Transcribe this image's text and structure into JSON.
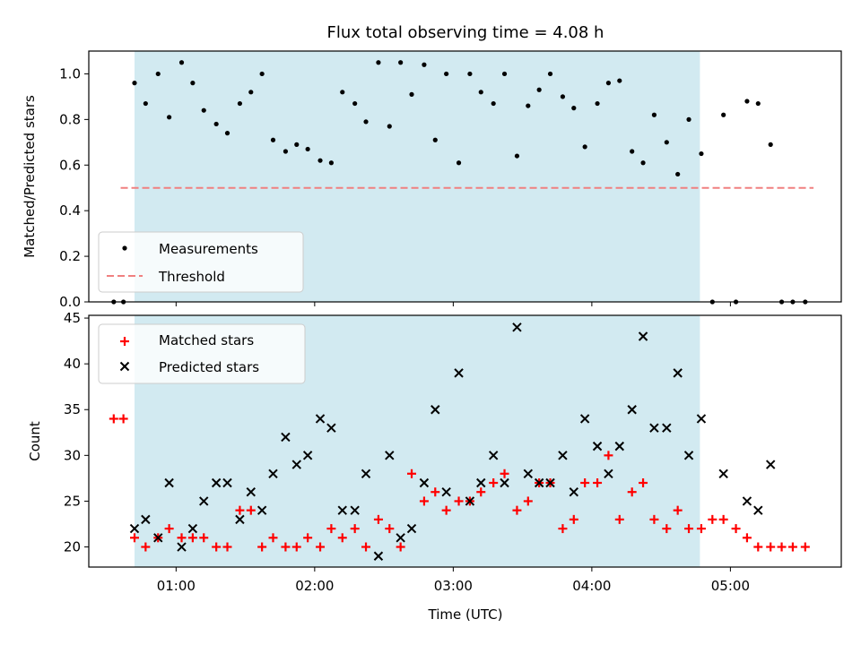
{
  "chart_data": {
    "title": "Flux total observing time = 4.08 h",
    "xlabel": "Time (UTC)",
    "x_tick_labels": [
      "01:00",
      "02:00",
      "03:00",
      "04:00",
      "05:00"
    ],
    "x_tick_hours": [
      1,
      2,
      3,
      4,
      5
    ],
    "xlim_hours": [
      0.37,
      5.8
    ],
    "shaded_region_hours": [
      0.7,
      4.78
    ],
    "shade_color": "#add8e6",
    "top_panel": {
      "type": "scatter",
      "ylabel": "Matched/Predicted stars",
      "ylim": [
        0,
        1.1
      ],
      "y_ticks": [
        0.0,
        0.2,
        0.4,
        0.6,
        0.8,
        1.0
      ],
      "y_tick_labels": [
        "0.0",
        "0.2",
        "0.4",
        "0.6",
        "0.8",
        "1.0"
      ],
      "threshold": {
        "name": "Threshold",
        "y": 0.5,
        "x_range": [
          0.6,
          5.6
        ],
        "color": "#f08080"
      },
      "measurements": {
        "name": "Measurements",
        "color": "#000000",
        "x": [
          0.55,
          0.62,
          0.7,
          0.78,
          0.87,
          0.95,
          1.04,
          1.12,
          1.2,
          1.29,
          1.37,
          1.46,
          1.54,
          1.62,
          1.7,
          1.79,
          1.87,
          1.95,
          2.04,
          2.12,
          2.2,
          2.29,
          2.37,
          2.46,
          2.54,
          2.62,
          2.7,
          2.79,
          2.87,
          2.95,
          3.04,
          3.12,
          3.2,
          3.29,
          3.37,
          3.46,
          3.54,
          3.62,
          3.7,
          3.79,
          3.87,
          3.95,
          4.04,
          4.12,
          4.2,
          4.29,
          4.37,
          4.45,
          4.54,
          4.62,
          4.7,
          4.79,
          4.87,
          4.95,
          5.04,
          5.12,
          5.2,
          5.29,
          5.37,
          5.45,
          5.54
        ],
        "y": [
          0.0,
          0.0,
          0.96,
          0.87,
          1.0,
          0.81,
          1.05,
          0.96,
          0.84,
          0.78,
          0.74,
          0.87,
          0.92,
          1.0,
          0.71,
          0.66,
          0.69,
          0.67,
          0.62,
          0.61,
          0.92,
          0.87,
          0.79,
          1.05,
          0.77,
          1.05,
          0.91,
          1.04,
          0.71,
          1.0,
          0.61,
          1.0,
          0.92,
          0.87,
          1.0,
          0.64,
          0.86,
          0.93,
          1.0,
          0.9,
          0.85,
          0.68,
          0.87,
          0.96,
          0.97,
          0.66,
          0.61,
          0.82,
          0.7,
          0.56,
          0.8,
          0.65,
          0.0,
          0.82,
          0.0,
          0.88,
          0.87,
          0.69,
          0.0,
          0.0,
          0.0
        ]
      },
      "legend": {
        "placement": "lower-left",
        "entries": [
          "Measurements",
          "Threshold"
        ]
      }
    },
    "bottom_panel": {
      "type": "scatter",
      "ylabel": "Count",
      "ylim": [
        17.8,
        45.3
      ],
      "y_ticks": [
        20,
        25,
        30,
        35,
        40,
        45
      ],
      "y_tick_labels": [
        "20",
        "25",
        "30",
        "35",
        "40",
        "45"
      ],
      "legend": {
        "placement": "upper-left",
        "entries": [
          "Matched stars",
          "Predicted stars"
        ]
      },
      "series": [
        {
          "name": "Matched stars",
          "marker": "plus",
          "color": "#ff0000",
          "x": [
            0.55,
            0.62,
            0.7,
            0.78,
            0.87,
            0.95,
            1.04,
            1.12,
            1.2,
            1.29,
            1.37,
            1.46,
            1.54,
            1.62,
            1.7,
            1.79,
            1.87,
            1.95,
            2.04,
            2.12,
            2.2,
            2.29,
            2.37,
            2.46,
            2.54,
            2.62,
            2.7,
            2.79,
            2.87,
            2.95,
            3.04,
            3.12,
            3.2,
            3.29,
            3.37,
            3.46,
            3.54,
            3.62,
            3.7,
            3.79,
            3.87,
            3.95,
            4.04,
            4.12,
            4.2,
            4.29,
            4.37,
            4.45,
            4.54,
            4.62,
            4.7,
            4.79,
            4.87,
            4.95,
            5.04,
            5.12,
            5.2,
            5.29,
            5.37,
            5.45,
            5.54
          ],
          "y": [
            34,
            34,
            21,
            20,
            21,
            22,
            21,
            21,
            21,
            20,
            20,
            24,
            24,
            20,
            21,
            20,
            20,
            21,
            20,
            22,
            21,
            22,
            20,
            23,
            22,
            20,
            28,
            25,
            26,
            24,
            25,
            25,
            26,
            27,
            28,
            24,
            25,
            27,
            27,
            22,
            23,
            27,
            27,
            30,
            23,
            26,
            27,
            23,
            22,
            24,
            22,
            22,
            23,
            23,
            22,
            21,
            20,
            20,
            20,
            20,
            20
          ]
        },
        {
          "name": "Predicted stars",
          "marker": "x",
          "color": "#000000",
          "x": [
            0.7,
            0.78,
            0.87,
            0.95,
            1.04,
            1.12,
            1.2,
            1.29,
            1.37,
            1.46,
            1.54,
            1.62,
            1.7,
            1.79,
            1.87,
            1.95,
            2.04,
            2.12,
            2.2,
            2.29,
            2.37,
            2.46,
            2.54,
            2.62,
            2.7,
            2.79,
            2.87,
            2.95,
            3.04,
            3.12,
            3.2,
            3.29,
            3.37,
            3.46,
            3.54,
            3.62,
            3.7,
            3.79,
            3.87,
            3.95,
            4.04,
            4.12,
            4.2,
            4.29,
            4.37,
            4.45,
            4.54,
            4.62,
            4.7,
            4.79,
            4.95,
            5.12,
            5.2,
            5.29
          ],
          "y": [
            22,
            23,
            21,
            27,
            20,
            22,
            25,
            27,
            27,
            23,
            26,
            24,
            28,
            32,
            29,
            30,
            34,
            33,
            24,
            24,
            28,
            19,
            30,
            21,
            22,
            27,
            35,
            26,
            39,
            25,
            27,
            30,
            27,
            44,
            28,
            27,
            27,
            30,
            26,
            34,
            31,
            28,
            31,
            35,
            43,
            33,
            33,
            39,
            30,
            34,
            28,
            25,
            24,
            29
          ]
        }
      ]
    }
  }
}
